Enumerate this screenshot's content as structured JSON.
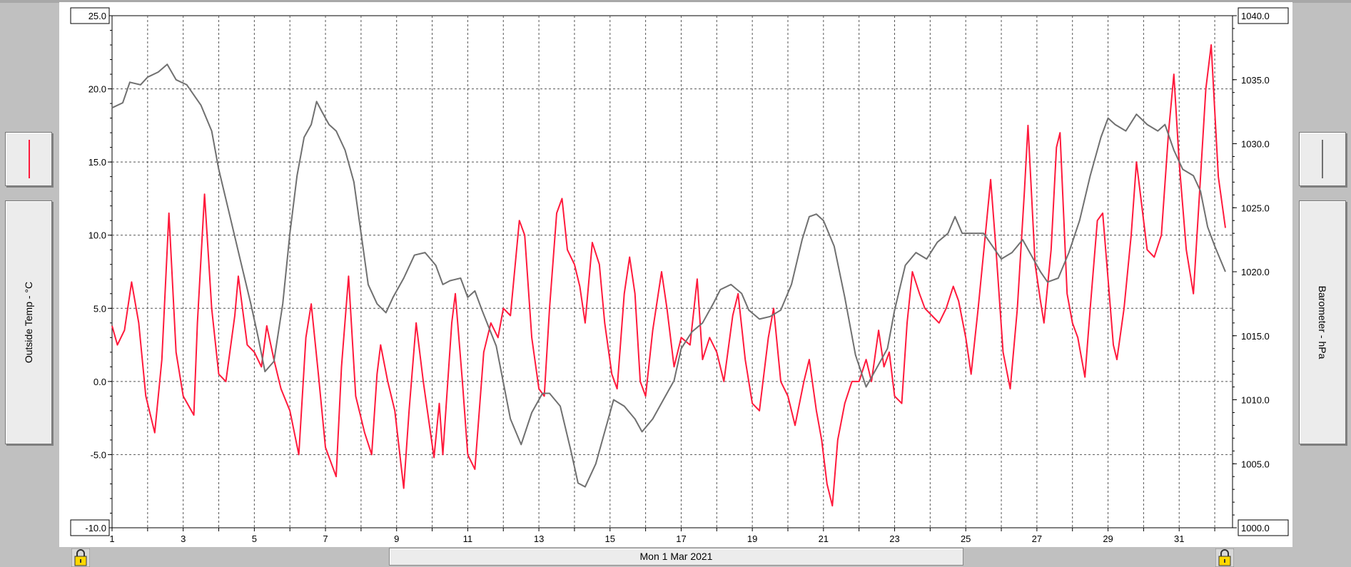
{
  "chart_data": {
    "type": "line",
    "date_label": "Mon 1 Mar 2021",
    "x_ticks": [
      "1",
      "3",
      "5",
      "7",
      "9",
      "11",
      "13",
      "15",
      "17",
      "19",
      "21",
      "23",
      "25",
      "27",
      "29",
      "31"
    ],
    "xlim": [
      1,
      32.5
    ],
    "y_left": {
      "label": "Outside Temp - °C",
      "ticks": [
        "25.0",
        "20.0",
        "15.0",
        "10.0",
        "5.0",
        "0.0",
        "-5.0",
        "-10.0"
      ],
      "min": -10,
      "max": 25
    },
    "y_right": {
      "label": "Barometer - hPa",
      "ticks": [
        "1040.0",
        "1035.0",
        "1030.0",
        "1025.0",
        "1020.0",
        "1015.0",
        "1010.0",
        "1005.0",
        "1000.0"
      ],
      "min": 1000,
      "max": 1040
    },
    "series": [
      {
        "axis": "left",
        "color": "#ff1a3c",
        "points": [
          [
            1.0,
            3.8
          ],
          [
            1.15,
            2.5
          ],
          [
            1.35,
            3.5
          ],
          [
            1.55,
            6.8
          ],
          [
            1.75,
            4.0
          ],
          [
            1.95,
            -1.0
          ],
          [
            2.2,
            -3.5
          ],
          [
            2.4,
            1.5
          ],
          [
            2.6,
            11.5
          ],
          [
            2.8,
            2.0
          ],
          [
            3.0,
            -1.0
          ],
          [
            3.3,
            -2.3
          ],
          [
            3.4,
            4.0
          ],
          [
            3.6,
            12.8
          ],
          [
            3.8,
            5.0
          ],
          [
            4.0,
            0.5
          ],
          [
            4.2,
            0.0
          ],
          [
            4.45,
            4.5
          ],
          [
            4.55,
            7.2
          ],
          [
            4.8,
            2.5
          ],
          [
            5.0,
            2.0
          ],
          [
            5.2,
            1.0
          ],
          [
            5.35,
            3.8
          ],
          [
            5.55,
            1.5
          ],
          [
            5.75,
            -0.5
          ],
          [
            6.0,
            -2.0
          ],
          [
            6.25,
            -5.0
          ],
          [
            6.45,
            3.0
          ],
          [
            6.6,
            5.3
          ],
          [
            6.8,
            0.5
          ],
          [
            7.0,
            -4.5
          ],
          [
            7.3,
            -6.5
          ],
          [
            7.45,
            1.0
          ],
          [
            7.65,
            7.2
          ],
          [
            7.85,
            -1.0
          ],
          [
            8.1,
            -3.5
          ],
          [
            8.3,
            -5.0
          ],
          [
            8.45,
            0.5
          ],
          [
            8.55,
            2.5
          ],
          [
            8.75,
            0.0
          ],
          [
            8.95,
            -2.0
          ],
          [
            9.2,
            -7.3
          ],
          [
            9.35,
            -2.0
          ],
          [
            9.55,
            4.0
          ],
          [
            9.75,
            0.0
          ],
          [
            10.05,
            -5.2
          ],
          [
            10.2,
            -1.5
          ],
          [
            10.3,
            -5.0
          ],
          [
            10.55,
            4.0
          ],
          [
            10.65,
            6.0
          ],
          [
            10.85,
            0.0
          ],
          [
            11.0,
            -5.0
          ],
          [
            11.2,
            -6.0
          ],
          [
            11.45,
            2.0
          ],
          [
            11.65,
            4.0
          ],
          [
            11.85,
            3.0
          ],
          [
            12.0,
            5.0
          ],
          [
            12.2,
            4.5
          ],
          [
            12.45,
            11.0
          ],
          [
            12.6,
            10.0
          ],
          [
            12.8,
            3.0
          ],
          [
            13.0,
            -0.5
          ],
          [
            13.15,
            -1.0
          ],
          [
            13.3,
            5.0
          ],
          [
            13.5,
            11.5
          ],
          [
            13.65,
            12.5
          ],
          [
            13.8,
            9.0
          ],
          [
            14.0,
            8.0
          ],
          [
            14.15,
            6.5
          ],
          [
            14.3,
            4.0
          ],
          [
            14.5,
            9.5
          ],
          [
            14.7,
            8.0
          ],
          [
            14.85,
            4.0
          ],
          [
            15.05,
            0.5
          ],
          [
            15.2,
            -0.5
          ],
          [
            15.4,
            6.0
          ],
          [
            15.55,
            8.5
          ],
          [
            15.7,
            6.0
          ],
          [
            15.85,
            0.0
          ],
          [
            16.0,
            -1.0
          ],
          [
            16.2,
            3.5
          ],
          [
            16.45,
            7.5
          ],
          [
            16.6,
            5.0
          ],
          [
            16.8,
            1.0
          ],
          [
            17.0,
            3.0
          ],
          [
            17.25,
            2.5
          ],
          [
            17.45,
            7.0
          ],
          [
            17.6,
            1.5
          ],
          [
            17.8,
            3.0
          ],
          [
            18.0,
            2.0
          ],
          [
            18.2,
            0.0
          ],
          [
            18.45,
            4.5
          ],
          [
            18.6,
            6.0
          ],
          [
            18.8,
            1.5
          ],
          [
            19.0,
            -1.5
          ],
          [
            19.2,
            -2.0
          ],
          [
            19.45,
            3.0
          ],
          [
            19.6,
            5.0
          ],
          [
            19.8,
            0.0
          ],
          [
            20.0,
            -1.0
          ],
          [
            20.2,
            -3.0
          ],
          [
            20.45,
            0.0
          ],
          [
            20.6,
            1.5
          ],
          [
            20.8,
            -2.0
          ],
          [
            20.95,
            -4.0
          ],
          [
            21.1,
            -7.0
          ],
          [
            21.25,
            -8.5
          ],
          [
            21.4,
            -4.0
          ],
          [
            21.6,
            -1.5
          ],
          [
            21.8,
            0.0
          ],
          [
            22.0,
            0.0
          ],
          [
            22.2,
            1.5
          ],
          [
            22.35,
            0.0
          ],
          [
            22.55,
            3.5
          ],
          [
            22.7,
            1.0
          ],
          [
            22.85,
            2.0
          ],
          [
            23.0,
            -1.0
          ],
          [
            23.2,
            -1.5
          ],
          [
            23.35,
            4.0
          ],
          [
            23.5,
            7.5
          ],
          [
            23.7,
            6.0
          ],
          [
            23.85,
            5.0
          ],
          [
            24.05,
            4.5
          ],
          [
            24.25,
            4.0
          ],
          [
            24.45,
            5.0
          ],
          [
            24.65,
            6.5
          ],
          [
            24.8,
            5.5
          ],
          [
            25.0,
            3.0
          ],
          [
            25.15,
            0.5
          ],
          [
            25.35,
            5.0
          ],
          [
            25.55,
            10.0
          ],
          [
            25.7,
            13.8
          ],
          [
            25.85,
            9.0
          ],
          [
            26.05,
            2.0
          ],
          [
            26.25,
            -0.5
          ],
          [
            26.45,
            5.0
          ],
          [
            26.65,
            13.0
          ],
          [
            26.75,
            17.5
          ],
          [
            26.95,
            8.0
          ],
          [
            27.1,
            5.5
          ],
          [
            27.2,
            4.0
          ],
          [
            27.4,
            9.0
          ],
          [
            27.55,
            16.0
          ],
          [
            27.65,
            17.0
          ],
          [
            27.85,
            6.0
          ],
          [
            28.0,
            4.0
          ],
          [
            28.15,
            3.0
          ],
          [
            28.35,
            0.3
          ],
          [
            28.5,
            5.0
          ],
          [
            28.7,
            11.0
          ],
          [
            28.85,
            11.5
          ],
          [
            29.0,
            7.0
          ],
          [
            29.15,
            2.5
          ],
          [
            29.25,
            1.5
          ],
          [
            29.45,
            5.0
          ],
          [
            29.65,
            10.0
          ],
          [
            29.8,
            15.0
          ],
          [
            29.95,
            12.0
          ],
          [
            30.1,
            9.0
          ],
          [
            30.3,
            8.5
          ],
          [
            30.5,
            10.0
          ],
          [
            30.7,
            17.0
          ],
          [
            30.85,
            21.0
          ],
          [
            31.0,
            15.0
          ],
          [
            31.2,
            9.0
          ],
          [
            31.4,
            6.0
          ],
          [
            31.55,
            12.0
          ],
          [
            31.75,
            20.0
          ],
          [
            31.9,
            23.0
          ],
          [
            32.1,
            14.0
          ],
          [
            32.3,
            10.5
          ]
        ]
      },
      {
        "axis": "right",
        "color": "#707070",
        "points": [
          [
            1.0,
            1032.8
          ],
          [
            1.3,
            1033.2
          ],
          [
            1.5,
            1034.8
          ],
          [
            1.8,
            1034.6
          ],
          [
            2.0,
            1035.2
          ],
          [
            2.3,
            1035.6
          ],
          [
            2.55,
            1036.2
          ],
          [
            2.8,
            1035.0
          ],
          [
            3.1,
            1034.6
          ],
          [
            3.5,
            1033.0
          ],
          [
            3.8,
            1031.0
          ],
          [
            4.0,
            1028.0
          ],
          [
            4.3,
            1024.5
          ],
          [
            4.6,
            1021.0
          ],
          [
            4.9,
            1017.5
          ],
          [
            5.1,
            1015.0
          ],
          [
            5.3,
            1012.2
          ],
          [
            5.55,
            1013.0
          ],
          [
            5.8,
            1017.5
          ],
          [
            6.0,
            1023.0
          ],
          [
            6.2,
            1027.5
          ],
          [
            6.4,
            1030.5
          ],
          [
            6.6,
            1031.5
          ],
          [
            6.75,
            1033.3
          ],
          [
            6.9,
            1032.5
          ],
          [
            7.1,
            1031.5
          ],
          [
            7.3,
            1031.0
          ],
          [
            7.55,
            1029.5
          ],
          [
            7.8,
            1027.0
          ],
          [
            8.0,
            1023.0
          ],
          [
            8.2,
            1019.0
          ],
          [
            8.45,
            1017.5
          ],
          [
            8.7,
            1016.8
          ],
          [
            8.9,
            1018.0
          ],
          [
            9.2,
            1019.5
          ],
          [
            9.5,
            1021.3
          ],
          [
            9.8,
            1021.5
          ],
          [
            10.1,
            1020.5
          ],
          [
            10.3,
            1019.0
          ],
          [
            10.5,
            1019.3
          ],
          [
            10.8,
            1019.5
          ],
          [
            11.0,
            1018.0
          ],
          [
            11.2,
            1018.5
          ],
          [
            11.4,
            1017.0
          ],
          [
            11.8,
            1014.2
          ],
          [
            12.2,
            1008.5
          ],
          [
            12.5,
            1006.5
          ],
          [
            12.8,
            1009.0
          ],
          [
            13.1,
            1010.5
          ],
          [
            13.3,
            1010.5
          ],
          [
            13.6,
            1009.5
          ],
          [
            13.9,
            1006.0
          ],
          [
            14.1,
            1003.5
          ],
          [
            14.3,
            1003.2
          ],
          [
            14.6,
            1005.0
          ],
          [
            14.9,
            1008.0
          ],
          [
            15.1,
            1010.0
          ],
          [
            15.4,
            1009.5
          ],
          [
            15.7,
            1008.5
          ],
          [
            15.9,
            1007.5
          ],
          [
            16.2,
            1008.5
          ],
          [
            16.5,
            1010.0
          ],
          [
            16.8,
            1011.5
          ],
          [
            17.0,
            1014.0
          ],
          [
            17.3,
            1015.3
          ],
          [
            17.6,
            1016.0
          ],
          [
            17.9,
            1017.5
          ],
          [
            18.1,
            1018.6
          ],
          [
            18.4,
            1019.0
          ],
          [
            18.7,
            1018.3
          ],
          [
            18.9,
            1017.0
          ],
          [
            19.2,
            1016.3
          ],
          [
            19.5,
            1016.5
          ],
          [
            19.8,
            1017.0
          ],
          [
            20.1,
            1019.0
          ],
          [
            20.4,
            1022.5
          ],
          [
            20.6,
            1024.3
          ],
          [
            20.8,
            1024.5
          ],
          [
            21.0,
            1024.0
          ],
          [
            21.3,
            1022.0
          ],
          [
            21.6,
            1018.0
          ],
          [
            21.9,
            1013.5
          ],
          [
            22.2,
            1011.0
          ],
          [
            22.5,
            1012.5
          ],
          [
            22.8,
            1014.0
          ],
          [
            23.0,
            1017.0
          ],
          [
            23.3,
            1020.5
          ],
          [
            23.6,
            1021.5
          ],
          [
            23.9,
            1021.0
          ],
          [
            24.2,
            1022.3
          ],
          [
            24.5,
            1023.0
          ],
          [
            24.7,
            1024.3
          ],
          [
            24.9,
            1023.0
          ],
          [
            25.2,
            1023.0
          ],
          [
            25.5,
            1023.0
          ],
          [
            25.8,
            1021.8
          ],
          [
            26.0,
            1021.0
          ],
          [
            26.3,
            1021.5
          ],
          [
            26.6,
            1022.5
          ],
          [
            26.9,
            1021.0
          ],
          [
            27.1,
            1020.0
          ],
          [
            27.3,
            1019.2
          ],
          [
            27.6,
            1019.5
          ],
          [
            27.9,
            1021.5
          ],
          [
            28.2,
            1024.0
          ],
          [
            28.5,
            1027.5
          ],
          [
            28.8,
            1030.5
          ],
          [
            29.0,
            1032.0
          ],
          [
            29.2,
            1031.5
          ],
          [
            29.5,
            1031.0
          ],
          [
            29.8,
            1032.3
          ],
          [
            30.1,
            1031.5
          ],
          [
            30.4,
            1031.0
          ],
          [
            30.6,
            1031.5
          ],
          [
            30.85,
            1029.5
          ],
          [
            31.1,
            1028.0
          ],
          [
            31.4,
            1027.5
          ],
          [
            31.6,
            1026.3
          ],
          [
            31.8,
            1023.5
          ],
          [
            32.0,
            1022.0
          ],
          [
            32.3,
            1020.0
          ]
        ]
      }
    ]
  }
}
